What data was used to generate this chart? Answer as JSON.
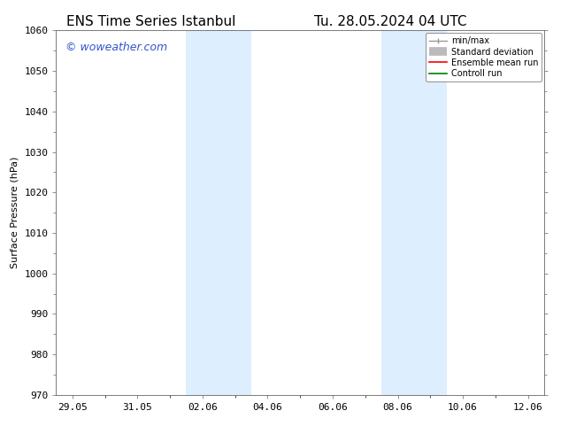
{
  "title_left": "ENS Time Series Istanbul",
  "title_right": "Tu. 28.05.2024 04 UTC",
  "ylabel": "Surface Pressure (hPa)",
  "ylim": [
    970,
    1060
  ],
  "yticks": [
    970,
    980,
    990,
    1000,
    1010,
    1020,
    1030,
    1040,
    1050,
    1060
  ],
  "xtick_labels": [
    "29.05",
    "31.05",
    "02.06",
    "04.06",
    "06.06",
    "08.06",
    "10.06",
    "12.06"
  ],
  "xtick_positions": [
    0,
    2,
    4,
    6,
    8,
    10,
    12,
    14
  ],
  "xlim": [
    -0.5,
    14.5
  ],
  "shaded_bands": [
    {
      "x_start": 3.5,
      "x_end": 5.5
    },
    {
      "x_start": 9.5,
      "x_end": 11.5
    }
  ],
  "shade_color": "#ddeeff",
  "watermark": "© woweather.com",
  "watermark_color": "#3355cc",
  "legend_labels": [
    "min/max",
    "Standard deviation",
    "Ensemble mean run",
    "Controll run"
  ],
  "legend_colors": [
    "#999999",
    "#cccccc",
    "red",
    "green"
  ],
  "bg_color": "#ffffff",
  "spine_color": "#666666",
  "tick_color": "#333333",
  "title_fontsize": 11,
  "ylabel_fontsize": 8,
  "tick_fontsize": 8,
  "watermark_fontsize": 9,
  "legend_fontsize": 7
}
